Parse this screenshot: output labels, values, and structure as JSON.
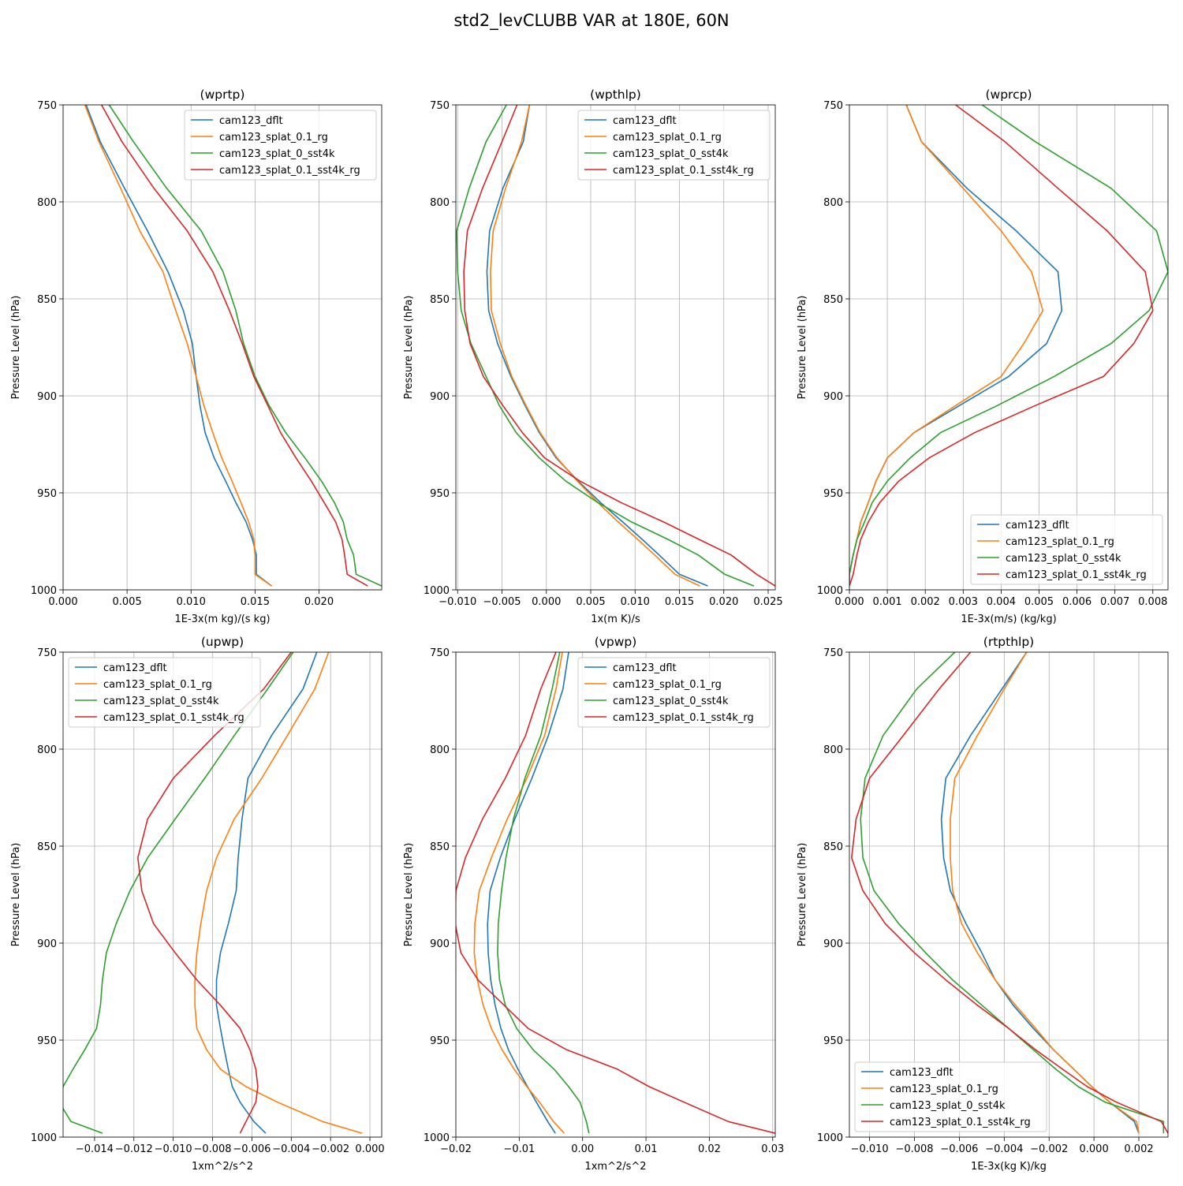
{
  "figure": {
    "suptitle": "std2_levCLUBB VAR at 180E, 60N"
  },
  "colors": {
    "cam123_dflt": "#1f77b4",
    "cam123_splat_0.1_rg": "#ff7f0e",
    "cam123_splat_0_sst4k": "#2ca02c",
    "cam123_splat_0.1_sst4k_rg": "#d62728"
  },
  "chart_data": [
    {
      "type": "line",
      "title": "(wprtp)",
      "xlabel": "1E-3x(m kg)/(s kg)",
      "ylabel": "Pressure Level (hPa)",
      "xlim": [
        0,
        0.0249
      ],
      "ylim": [
        1000,
        750
      ],
      "grid": true,
      "xticks": [
        0.0,
        0.005,
        0.01,
        0.015,
        0.02
      ],
      "xtick_labels": [
        "0.000",
        "0.005",
        "0.010",
        "0.015",
        "0.020"
      ],
      "yticks": [
        750,
        800,
        850,
        900,
        950,
        1000
      ],
      "ytick_labels": [
        "750",
        "800",
        "850",
        "900",
        "950",
        "1000"
      ],
      "legend_loc": "upper-right",
      "levels": [
        750,
        769,
        793,
        815,
        836,
        856,
        873,
        890,
        905,
        919,
        932,
        944,
        955,
        965,
        974,
        982,
        992,
        998
      ],
      "series": [
        {
          "name": "cam123_dflt",
          "values": [
            0.0018,
            0.0029,
            0.0048,
            0.0066,
            0.0082,
            0.0094,
            0.0101,
            0.0104,
            0.0107,
            0.0111,
            0.0118,
            0.0127,
            0.0135,
            0.0143,
            0.0148,
            0.0151,
            0.0151,
            0.0163
          ]
        },
        {
          "name": "cam123_splat_0.1_rg",
          "values": [
            0.0017,
            0.0028,
            0.0045,
            0.006,
            0.0078,
            0.0088,
            0.0097,
            0.0104,
            0.011,
            0.0117,
            0.0124,
            0.0132,
            0.0139,
            0.0145,
            0.0149,
            0.015,
            0.015,
            0.0163
          ]
        },
        {
          "name": "cam123_splat_0_sst4k",
          "values": [
            0.0036,
            0.0055,
            0.0081,
            0.0108,
            0.0125,
            0.0135,
            0.0141,
            0.015,
            0.0161,
            0.0174,
            0.0189,
            0.0202,
            0.0212,
            0.0219,
            0.0222,
            0.0227,
            0.0229,
            0.0249
          ]
        },
        {
          "name": "cam123_splat_0.1_sst4k_rg",
          "values": [
            0.003,
            0.0046,
            0.0071,
            0.0097,
            0.0117,
            0.013,
            0.014,
            0.0149,
            0.016,
            0.017,
            0.0182,
            0.0194,
            0.0204,
            0.0213,
            0.0218,
            0.022,
            0.0222,
            0.0238
          ]
        }
      ]
    },
    {
      "type": "line",
      "title": "(wpthlp)",
      "xlabel": "1x(m K)/s",
      "ylabel": "Pressure Level (hPa)",
      "xlim": [
        -0.0102,
        0.0258
      ],
      "ylim": [
        1000,
        750
      ],
      "grid": true,
      "xticks": [
        -0.01,
        -0.005,
        0.0,
        0.005,
        0.01,
        0.015,
        0.02,
        0.025
      ],
      "xtick_labels": [
        "−0.010",
        "−0.005",
        "0.000",
        "0.005",
        "0.010",
        "0.015",
        "0.020",
        "0.025"
      ],
      "yticks": [
        750,
        800,
        850,
        900,
        950,
        1000
      ],
      "ytick_labels": [
        "750",
        "800",
        "850",
        "900",
        "950",
        "1000"
      ],
      "legend_loc": "upper-right",
      "levels": [
        750,
        769,
        793,
        815,
        836,
        856,
        873,
        890,
        905,
        919,
        932,
        944,
        955,
        965,
        974,
        982,
        992,
        998
      ],
      "series": [
        {
          "name": "cam123_dflt",
          "values": [
            -0.0019,
            -0.0026,
            -0.0049,
            -0.0064,
            -0.0067,
            -0.0065,
            -0.0055,
            -0.004,
            -0.0024,
            -0.0008,
            0.0011,
            0.0036,
            0.0061,
            0.0086,
            0.0108,
            0.0127,
            0.015,
            0.0182
          ]
        },
        {
          "name": "cam123_splat_0.1_rg",
          "values": [
            -0.0019,
            -0.0028,
            -0.0046,
            -0.006,
            -0.0063,
            -0.0062,
            -0.0052,
            -0.0039,
            -0.0023,
            -0.0007,
            0.0012,
            0.0035,
            0.0058,
            0.0081,
            0.0103,
            0.0122,
            0.0145,
            0.0173
          ]
        },
        {
          "name": "cam123_splat_0_sst4k",
          "values": [
            -0.0045,
            -0.0068,
            -0.0087,
            -0.0101,
            -0.01,
            -0.0096,
            -0.0085,
            -0.0068,
            -0.0053,
            -0.0034,
            -0.0008,
            0.0022,
            0.0058,
            0.0096,
            0.0137,
            0.0171,
            0.0201,
            0.0234
          ]
        },
        {
          "name": "cam123_splat_0.1_sst4k_rg",
          "values": [
            -0.0033,
            -0.005,
            -0.0072,
            -0.0089,
            -0.0093,
            -0.0092,
            -0.0086,
            -0.0071,
            -0.0049,
            -0.0027,
            -0.0002,
            0.0038,
            0.0084,
            0.0132,
            0.0172,
            0.0208,
            0.0237,
            0.0258
          ]
        }
      ]
    },
    {
      "type": "line",
      "title": "(wprcp)",
      "xlabel": "1E-3x(m/s) (kg/kg)",
      "ylabel": "Pressure Level (hPa)",
      "xlim": [
        0,
        0.0084
      ],
      "ylim": [
        1000,
        750
      ],
      "grid": true,
      "xticks": [
        0.0,
        0.001,
        0.002,
        0.003,
        0.004,
        0.005,
        0.006,
        0.007,
        0.008
      ],
      "xtick_labels": [
        "0.000",
        "0.001",
        "0.002",
        "0.003",
        "0.004",
        "0.005",
        "0.006",
        "0.007",
        "0.008"
      ],
      "yticks": [
        750,
        800,
        850,
        900,
        950,
        1000
      ],
      "ytick_labels": [
        "750",
        "800",
        "850",
        "900",
        "950",
        "1000"
      ],
      "legend_loc": "lower-right",
      "levels": [
        750,
        769,
        793,
        815,
        836,
        856,
        873,
        890,
        905,
        919,
        932,
        944,
        955,
        965,
        974,
        982,
        992,
        998
      ],
      "series": [
        {
          "name": "cam123_dflt",
          "values": [
            0.0015,
            0.0019,
            0.0031,
            0.0044,
            0.0055,
            0.0056,
            0.0052,
            0.0042,
            0.0029,
            0.0017,
            0.001,
            0.0007,
            0.0005,
            0.0003,
            0.0002,
            0.0001,
            0.0,
            0.0
          ]
        },
        {
          "name": "cam123_splat_0.1_rg",
          "values": [
            0.0015,
            0.0019,
            0.003,
            0.004,
            0.0048,
            0.0051,
            0.0046,
            0.004,
            0.0028,
            0.0017,
            0.001,
            0.0007,
            0.0005,
            0.0003,
            0.0002,
            0.0001,
            0.0,
            0.0
          ]
        },
        {
          "name": "cam123_splat_0_sst4k",
          "values": [
            0.0035,
            0.0049,
            0.0069,
            0.0081,
            0.0084,
            0.0079,
            0.0069,
            0.0054,
            0.0039,
            0.0024,
            0.0016,
            0.001,
            0.0006,
            0.0004,
            0.0002,
            0.0001,
            0.0,
            0.0
          ]
        },
        {
          "name": "cam123_splat_0.1_sst4k_rg",
          "values": [
            0.0028,
            0.0041,
            0.0055,
            0.0068,
            0.0078,
            0.008,
            0.0075,
            0.0067,
            0.0049,
            0.0033,
            0.0021,
            0.0013,
            0.0008,
            0.0005,
            0.0003,
            0.0002,
            0.0001,
            0.0
          ]
        }
      ]
    },
    {
      "type": "line",
      "title": "(upwp)",
      "xlabel": "1xm^2/s^2",
      "ylabel": "Pressure Level (hPa)",
      "xlim": [
        -0.0156,
        0.0006
      ],
      "ylim": [
        1000,
        750
      ],
      "grid": true,
      "xticks": [
        -0.014,
        -0.012,
        -0.01,
        -0.008,
        -0.006,
        -0.004,
        -0.002,
        0.0
      ],
      "xtick_labels": [
        "−0.014",
        "−0.012",
        "−0.010",
        "−0.008",
        "−0.006",
        "−0.004",
        "−0.002",
        "0.000"
      ],
      "yticks": [
        750,
        800,
        850,
        900,
        950,
        1000
      ],
      "ytick_labels": [
        "750",
        "800",
        "850",
        "900",
        "950",
        "1000"
      ],
      "legend_loc": "upper-left",
      "levels": [
        750,
        769,
        793,
        815,
        836,
        856,
        873,
        890,
        905,
        919,
        932,
        944,
        955,
        965,
        974,
        982,
        992,
        998
      ],
      "series": [
        {
          "name": "cam123_dflt",
          "values": [
            -0.0027,
            -0.0034,
            -0.005,
            -0.0062,
            -0.0065,
            -0.0067,
            -0.0068,
            -0.0072,
            -0.0076,
            -0.0078,
            -0.0078,
            -0.0076,
            -0.0074,
            -0.0072,
            -0.007,
            -0.0066,
            -0.0059,
            -0.0053
          ]
        },
        {
          "name": "cam123_splat_0.1_rg",
          "values": [
            -0.0021,
            -0.0028,
            -0.0042,
            -0.0055,
            -0.0069,
            -0.0078,
            -0.0083,
            -0.0086,
            -0.0088,
            -0.0089,
            -0.0089,
            -0.0088,
            -0.0083,
            -0.0076,
            -0.0063,
            -0.0047,
            -0.0024,
            -0.0004
          ]
        },
        {
          "name": "cam123_splat_0_sst4k",
          "values": [
            -0.0039,
            -0.0052,
            -0.0069,
            -0.0084,
            -0.0099,
            -0.0113,
            -0.0122,
            -0.0129,
            -0.0134,
            -0.0136,
            -0.0137,
            -0.0139,
            -0.0145,
            -0.0151,
            -0.0156,
            -0.0158,
            -0.0152,
            -0.0136
          ]
        },
        {
          "name": "cam123_splat_0.1_sst4k_rg",
          "values": [
            -0.004,
            -0.0054,
            -0.0079,
            -0.01,
            -0.0113,
            -0.0118,
            -0.0116,
            -0.011,
            -0.0099,
            -0.0088,
            -0.0076,
            -0.0066,
            -0.0061,
            -0.0058,
            -0.0057,
            -0.0058,
            -0.0063,
            -0.0066
          ]
        }
      ]
    },
    {
      "type": "line",
      "title": "(vpwp)",
      "xlabel": "1xm^2/s^2",
      "ylabel": "Pressure Level (hPa)",
      "xlim": [
        -0.02,
        0.0304
      ],
      "ylim": [
        1000,
        750
      ],
      "grid": true,
      "xticks": [
        -0.02,
        -0.01,
        0.0,
        0.01,
        0.02,
        0.03
      ],
      "xtick_labels": [
        "−0.02",
        "−0.01",
        "0.00",
        "0.01",
        "0.02",
        "0.03"
      ],
      "yticks": [
        750,
        800,
        850,
        900,
        950,
        1000
      ],
      "ytick_labels": [
        "750",
        "800",
        "850",
        "900",
        "950",
        "1000"
      ],
      "legend_loc": "upper-right",
      "levels": [
        750,
        769,
        793,
        815,
        836,
        856,
        873,
        890,
        905,
        919,
        932,
        944,
        955,
        965,
        974,
        982,
        992,
        998
      ],
      "series": [
        {
          "name": "cam123_dflt",
          "values": [
            -0.0022,
            -0.0031,
            -0.0054,
            -0.008,
            -0.0107,
            -0.013,
            -0.0146,
            -0.015,
            -0.0149,
            -0.0145,
            -0.0138,
            -0.0129,
            -0.0117,
            -0.0102,
            -0.0087,
            -0.0073,
            -0.0055,
            -0.0043
          ]
        },
        {
          "name": "cam123_splat_0.1_rg",
          "values": [
            -0.0032,
            -0.0042,
            -0.006,
            -0.0088,
            -0.0119,
            -0.0144,
            -0.0163,
            -0.017,
            -0.0171,
            -0.0166,
            -0.0157,
            -0.0144,
            -0.0127,
            -0.0108,
            -0.0088,
            -0.0068,
            -0.0046,
            -0.0029
          ]
        },
        {
          "name": "cam123_splat_0_sst4k",
          "values": [
            -0.0036,
            -0.0048,
            -0.0066,
            -0.0091,
            -0.0109,
            -0.0121,
            -0.0128,
            -0.0133,
            -0.0134,
            -0.0131,
            -0.0122,
            -0.0104,
            -0.0078,
            -0.0045,
            -0.0022,
            -0.0004,
            0.0006,
            0.001
          ]
        },
        {
          "name": "cam123_splat_0.1_sst4k_rg",
          "values": [
            -0.0042,
            -0.0066,
            -0.009,
            -0.0122,
            -0.0158,
            -0.0185,
            -0.02,
            -0.0201,
            -0.0192,
            -0.0165,
            -0.0124,
            -0.0086,
            -0.0025,
            0.0055,
            0.0105,
            0.016,
            0.023,
            0.0304
          ]
        }
      ]
    },
    {
      "type": "line",
      "title": "(rtpthlp)",
      "xlabel": "1E-3x(kg K)/kg",
      "ylabel": "Pressure Level (hPa)",
      "xlim": [
        -0.0109,
        0.0033
      ],
      "ylim": [
        1000,
        750
      ],
      "grid": true,
      "xticks": [
        -0.01,
        -0.008,
        -0.006,
        -0.004,
        -0.002,
        0.0,
        0.002
      ],
      "xtick_labels": [
        "−0.010",
        "−0.008",
        "−0.006",
        "−0.004",
        "−0.002",
        "0.000",
        "0.002"
      ],
      "yticks": [
        750,
        800,
        850,
        900,
        950,
        1000
      ],
      "ytick_labels": [
        "750",
        "800",
        "850",
        "900",
        "950",
        "1000"
      ],
      "legend_loc": "lower-left",
      "levels": [
        750,
        769,
        793,
        815,
        836,
        856,
        873,
        890,
        905,
        919,
        932,
        944,
        955,
        965,
        974,
        982,
        992,
        998
      ],
      "series": [
        {
          "name": "cam123_dflt",
          "values": [
            -0.003,
            -0.0041,
            -0.0055,
            -0.0066,
            -0.0068,
            -0.0067,
            -0.0064,
            -0.0057,
            -0.005,
            -0.0044,
            -0.0036,
            -0.0027,
            -0.0018,
            -0.0009,
            -0.0001,
            0.0007,
            0.0018,
            0.002
          ]
        },
        {
          "name": "cam123_splat_0.1_rg",
          "values": [
            -0.003,
            -0.004,
            -0.0052,
            -0.0062,
            -0.0064,
            -0.0064,
            -0.0063,
            -0.0059,
            -0.0052,
            -0.0044,
            -0.0035,
            -0.0026,
            -0.0018,
            -0.0009,
            -0.0001,
            0.0007,
            0.0019,
            0.002
          ]
        },
        {
          "name": "cam123_splat_0_sst4k",
          "values": [
            -0.0062,
            -0.0079,
            -0.0094,
            -0.0102,
            -0.0104,
            -0.0103,
            -0.0098,
            -0.0087,
            -0.0075,
            -0.0063,
            -0.005,
            -0.0038,
            -0.0027,
            -0.0017,
            -0.0007,
            0.0005,
            0.0031,
            0.0031
          ]
        },
        {
          "name": "cam123_splat_0.1_sst4k_rg",
          "values": [
            -0.0055,
            -0.0069,
            -0.0085,
            -0.01,
            -0.0106,
            -0.0108,
            -0.0103,
            -0.0093,
            -0.008,
            -0.0066,
            -0.0052,
            -0.0038,
            -0.0026,
            -0.0014,
            -0.0003,
            0.001,
            0.003,
            0.0033
          ]
        }
      ]
    }
  ]
}
